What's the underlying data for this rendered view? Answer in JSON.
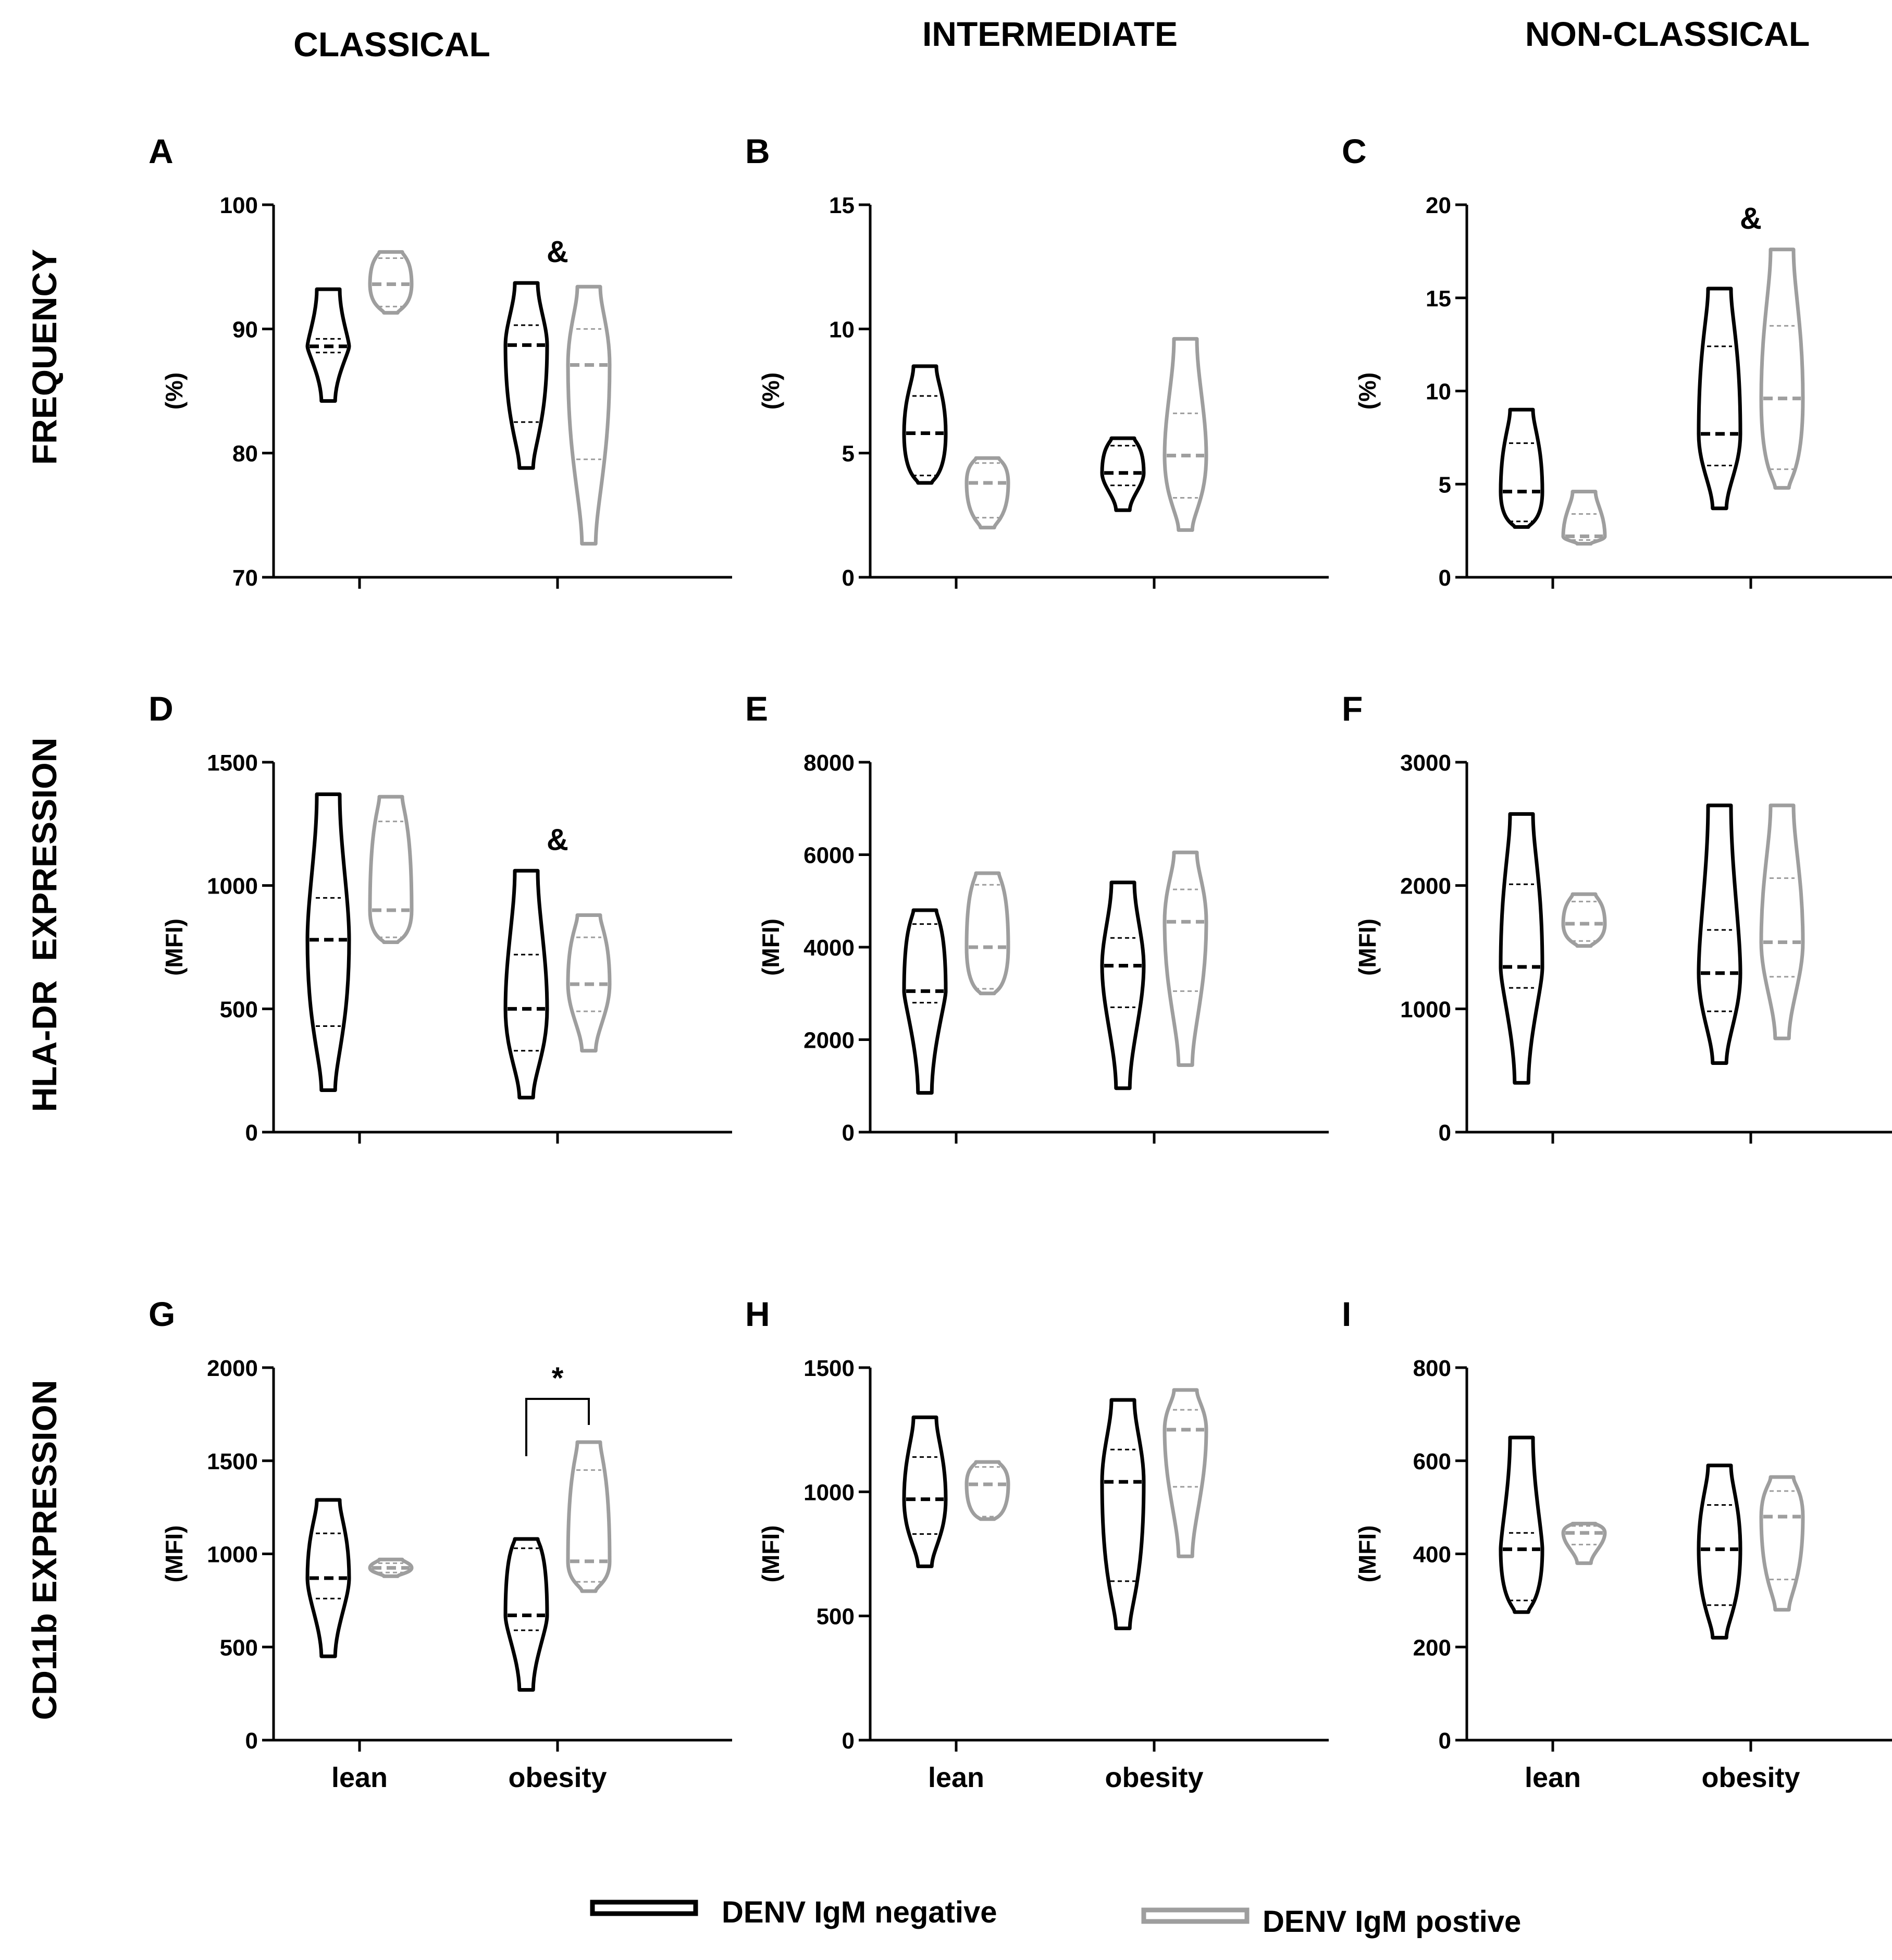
{
  "columns": [
    "CLASSICAL",
    "INTERMEDIATE",
    "NON-CLASSICAL"
  ],
  "rows": [
    "FREQUENCY",
    "HLA-DR  EXPRESSION",
    "CD11b EXPRESSION"
  ],
  "legend": {
    "negative": "DENV IgM negative",
    "positive": "DENV IgM postive"
  },
  "colors": {
    "negative": "#000000",
    "positive": "#9e9e9e"
  },
  "chart_data": [
    {
      "panel": "A",
      "type": "violin",
      "ylabel": "(%)",
      "ylim": [
        70,
        100
      ],
      "yticks": [
        70,
        80,
        90,
        100
      ],
      "categories": [
        "",
        ""
      ],
      "series": [
        {
          "name": "DENV IgM negative",
          "groups": [
            {
              "min": 84.2,
              "max": 93.2,
              "q1": 88.1,
              "median": 88.6,
              "q3": 89.2
            },
            {
              "min": 78.8,
              "max": 93.7,
              "q1": 82.5,
              "median": 88.7,
              "q3": 90.3
            }
          ]
        },
        {
          "name": "DENV IgM postive",
          "groups": [
            {
              "min": 91.3,
              "max": 96.2,
              "q1": 91.8,
              "median": 93.6,
              "q3": 95.7
            },
            {
              "min": 72.7,
              "max": 93.4,
              "q1": 79.5,
              "median": 87.1,
              "q3": 90.0
            }
          ]
        }
      ],
      "annotations": [
        {
          "text": "&",
          "group": 1
        }
      ]
    },
    {
      "panel": "B",
      "type": "violin",
      "ylabel": "(%)",
      "ylim": [
        0,
        15
      ],
      "yticks": [
        0,
        5,
        10,
        15
      ],
      "categories": [
        "",
        ""
      ],
      "series": [
        {
          "name": "DENV IgM negative",
          "groups": [
            {
              "min": 3.8,
              "max": 8.5,
              "q1": 4.1,
              "median": 5.8,
              "q3": 7.3
            },
            {
              "min": 2.7,
              "max": 5.6,
              "q1": 3.7,
              "median": 4.2,
              "q3": 5.3
            }
          ]
        },
        {
          "name": "DENV IgM postive",
          "groups": [
            {
              "min": 2.0,
              "max": 4.8,
              "q1": 2.4,
              "median": 3.8,
              "q3": 4.6
            },
            {
              "min": 1.9,
              "max": 9.6,
              "q1": 3.2,
              "median": 4.9,
              "q3": 6.6
            }
          ]
        }
      ],
      "annotations": []
    },
    {
      "panel": "C",
      "type": "violin",
      "ylabel": "(%)",
      "ylim": [
        0,
        20
      ],
      "yticks": [
        0,
        5,
        10,
        15,
        20
      ],
      "categories": [
        "",
        ""
      ],
      "series": [
        {
          "name": "DENV IgM negative",
          "groups": [
            {
              "min": 2.7,
              "max": 9.0,
              "q1": 3.0,
              "median": 4.6,
              "q3": 7.2
            },
            {
              "min": 3.7,
              "max": 15.5,
              "q1": 6.0,
              "median": 7.7,
              "q3": 12.4
            }
          ]
        },
        {
          "name": "DENV IgM postive",
          "groups": [
            {
              "min": 1.8,
              "max": 4.6,
              "q1": 2.0,
              "median": 2.2,
              "q3": 3.4
            },
            {
              "min": 4.8,
              "max": 17.6,
              "q1": 5.8,
              "median": 9.6,
              "q3": 13.5
            }
          ]
        }
      ],
      "annotations": [
        {
          "text": "&",
          "group": 1
        }
      ]
    },
    {
      "panel": "D",
      "type": "violin",
      "ylabel": "(MFI)",
      "ylim": [
        0,
        1500
      ],
      "yticks": [
        0,
        500,
        1000,
        1500
      ],
      "categories": [
        "",
        ""
      ],
      "series": [
        {
          "name": "DENV IgM negative",
          "groups": [
            {
              "min": 170,
              "max": 1370,
              "q1": 430,
              "median": 780,
              "q3": 950
            },
            {
              "min": 140,
              "max": 1060,
              "q1": 330,
              "median": 500,
              "q3": 720
            }
          ]
        },
        {
          "name": "DENV IgM postive",
          "groups": [
            {
              "min": 770,
              "max": 1360,
              "q1": 790,
              "median": 900,
              "q3": 1260
            },
            {
              "min": 330,
              "max": 880,
              "q1": 490,
              "median": 600,
              "q3": 790
            }
          ]
        }
      ],
      "annotations": [
        {
          "text": "&",
          "group": 1
        }
      ]
    },
    {
      "panel": "E",
      "type": "violin",
      "ylabel": "(MFI)",
      "ylim": [
        0,
        8000
      ],
      "yticks": [
        0,
        2000,
        4000,
        6000,
        8000
      ],
      "categories": [
        "",
        ""
      ],
      "series": [
        {
          "name": "DENV IgM negative",
          "groups": [
            {
              "min": 850,
              "max": 4800,
              "q1": 2800,
              "median": 3050,
              "q3": 4500
            },
            {
              "min": 950,
              "max": 5400,
              "q1": 2700,
              "median": 3600,
              "q3": 4200
            }
          ]
        },
        {
          "name": "DENV IgM postive",
          "groups": [
            {
              "min": 3000,
              "max": 5600,
              "q1": 3100,
              "median": 4000,
              "q3": 5350
            },
            {
              "min": 1450,
              "max": 6050,
              "q1": 3050,
              "median": 4550,
              "q3": 5250
            }
          ]
        }
      ],
      "annotations": []
    },
    {
      "panel": "F",
      "type": "violin",
      "ylabel": "(MFI)",
      "ylim": [
        0,
        3000
      ],
      "yticks": [
        0,
        1000,
        2000,
        3000
      ],
      "categories": [
        "",
        ""
      ],
      "series": [
        {
          "name": "DENV IgM negative",
          "groups": [
            {
              "min": 400,
              "max": 2580,
              "q1": 1170,
              "median": 1340,
              "q3": 2010
            },
            {
              "min": 560,
              "max": 2650,
              "q1": 980,
              "median": 1290,
              "q3": 1640
            }
          ]
        },
        {
          "name": "DENV IgM postive",
          "groups": [
            {
              "min": 1510,
              "max": 1930,
              "q1": 1550,
              "median": 1690,
              "q3": 1870
            },
            {
              "min": 760,
              "max": 2650,
              "q1": 1260,
              "median": 1540,
              "q3": 2060
            }
          ]
        }
      ],
      "annotations": []
    },
    {
      "panel": "G",
      "type": "violin",
      "ylabel": "(MFI)",
      "ylim": [
        0,
        2000
      ],
      "yticks": [
        0,
        500,
        1000,
        1500,
        2000
      ],
      "categories": [
        "lean",
        "obesity"
      ],
      "series": [
        {
          "name": "DENV IgM negative",
          "groups": [
            {
              "min": 450,
              "max": 1290,
              "q1": 760,
              "median": 870,
              "q3": 1110
            },
            {
              "min": 270,
              "max": 1080,
              "q1": 590,
              "median": 670,
              "q3": 1030
            }
          ]
        },
        {
          "name": "DENV IgM postive",
          "groups": [
            {
              "min": 880,
              "max": 970,
              "q1": 900,
              "median": 925,
              "q3": 950
            },
            {
              "min": 800,
              "max": 1600,
              "q1": 850,
              "median": 960,
              "q3": 1450
            }
          ]
        }
      ],
      "annotations": [
        {
          "text": "*",
          "group": 1,
          "bracket": true
        }
      ]
    },
    {
      "panel": "H",
      "type": "violin",
      "ylabel": "(MFI)",
      "ylim": [
        0,
        1500
      ],
      "yticks": [
        0,
        500,
        1000,
        1500
      ],
      "categories": [
        "lean",
        "obesity"
      ],
      "series": [
        {
          "name": "DENV IgM negative",
          "groups": [
            {
              "min": 700,
              "max": 1300,
              "q1": 830,
              "median": 970,
              "q3": 1140
            },
            {
              "min": 450,
              "max": 1370,
              "q1": 640,
              "median": 1040,
              "q3": 1170
            }
          ]
        },
        {
          "name": "DENV IgM postive",
          "groups": [
            {
              "min": 890,
              "max": 1120,
              "q1": 900,
              "median": 1030,
              "q3": 1100
            },
            {
              "min": 740,
              "max": 1410,
              "q1": 1020,
              "median": 1250,
              "q3": 1330
            }
          ]
        }
      ],
      "annotations": []
    },
    {
      "panel": "I",
      "type": "violin",
      "ylabel": "(MFI)",
      "ylim": [
        0,
        800
      ],
      "yticks": [
        0,
        200,
        400,
        600,
        800
      ],
      "categories": [
        "lean",
        "obesity"
      ],
      "series": [
        {
          "name": "DENV IgM negative",
          "groups": [
            {
              "min": 275,
              "max": 650,
              "q1": 300,
              "median": 410,
              "q3": 445
            },
            {
              "min": 220,
              "max": 590,
              "q1": 290,
              "median": 410,
              "q3": 505
            }
          ]
        },
        {
          "name": "DENV IgM postive",
          "groups": [
            {
              "min": 380,
              "max": 465,
              "q1": 420,
              "median": 445,
              "q3": 460
            },
            {
              "min": 280,
              "max": 565,
              "q1": 345,
              "median": 480,
              "q3": 535
            }
          ]
        }
      ],
      "annotations": []
    }
  ]
}
